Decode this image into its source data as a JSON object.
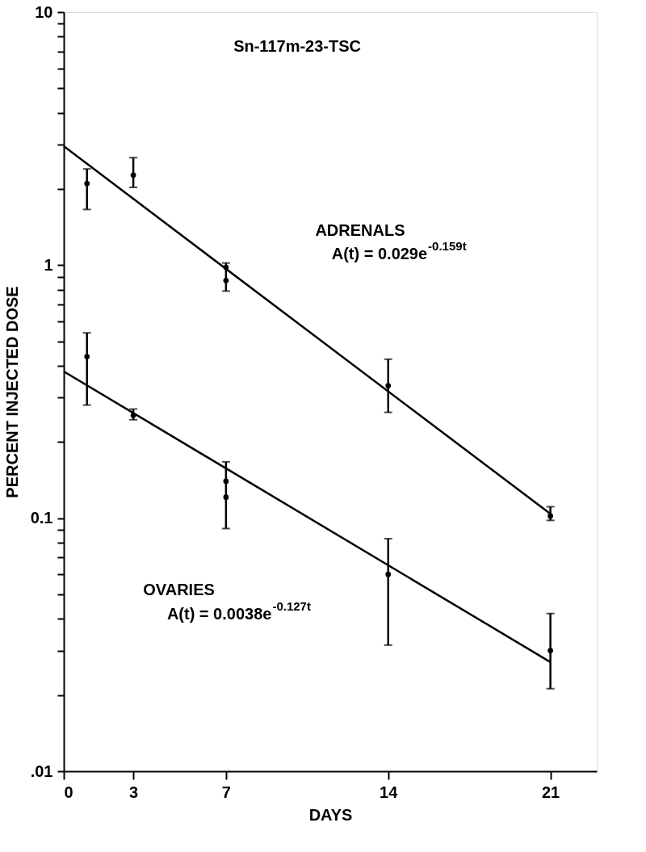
{
  "chart_data": {
    "type": "scatter",
    "title": "Sn-117m-23-TSC",
    "xlabel": "DAYS",
    "ylabel": "PERCENT INJECTED DOSE",
    "log": "y",
    "grid": false,
    "marker": "circle",
    "xlim": [
      0,
      23
    ],
    "xticks": [
      0,
      3,
      7,
      14,
      21
    ],
    "ylim": [
      0.01,
      10
    ],
    "yticks": [
      {
        "value": 0.01,
        "label": ".01"
      },
      {
        "value": 0.02,
        "label": null
      },
      {
        "value": 0.03,
        "label": null
      },
      {
        "value": 0.04,
        "label": null
      },
      {
        "value": 0.05,
        "label": null
      },
      {
        "value": 0.06,
        "label": null
      },
      {
        "value": 0.07,
        "label": null
      },
      {
        "value": 0.08,
        "label": null
      },
      {
        "value": 0.09,
        "label": null
      },
      0.1,
      {
        "value": 0.2,
        "label": null
      },
      {
        "value": 0.3,
        "label": null
      },
      {
        "value": 0.4,
        "label": null
      },
      {
        "value": 0.5,
        "label": null
      },
      {
        "value": 0.6,
        "label": null
      },
      {
        "value": 0.7,
        "label": null
      },
      {
        "value": 0.8,
        "label": null
      },
      {
        "value": 0.9,
        "label": null
      },
      1,
      {
        "value": 2,
        "label": null
      },
      {
        "value": 3,
        "label": null
      },
      {
        "value": 4,
        "label": null
      },
      {
        "value": 5,
        "label": null
      },
      {
        "value": 6,
        "label": null
      },
      {
        "value": 7,
        "label": null
      },
      {
        "value": 8,
        "label": null
      },
      {
        "value": 9,
        "label": null
      },
      10
    ],
    "series": [
      {
        "color": "#000000",
        "x": [
          1,
          3,
          7,
          7,
          14,
          21
        ],
        "values": [
          2.1,
          2.27,
          0.98,
          0.87,
          0.334,
          0.102
        ],
        "errors": [
          [
            1.66,
            2.4
          ],
          [
            2.03,
            2.66
          ],
          null,
          [
            0.79,
            1.02
          ],
          [
            0.262,
            0.425
          ],
          [
            0.098,
            0.111
          ]
        ]
      },
      {
        "color": "#000000",
        "x": [
          1,
          3,
          7,
          7,
          14,
          21
        ],
        "values": [
          0.435,
          0.255,
          0.14,
          0.121,
          0.06,
          0.03
        ],
        "errors": [
          [
            0.28,
            0.54
          ],
          [
            0.245,
            0.27
          ],
          null,
          [
            0.091,
            0.167
          ],
          [
            0.0315,
            0.083
          ],
          [
            0.0212,
            0.042
          ]
        ]
      },
      {
        "type": "line",
        "color": "#000000",
        "x": [
          0,
          21
        ],
        "values": [
          2.95,
          0.104
        ],
        "line_style": "solid",
        "marker": "none"
      },
      {
        "type": "line",
        "color": "#000000",
        "x": [
          0,
          21
        ],
        "values": [
          0.38,
          0.027
        ],
        "line_style": "solid",
        "marker": "none"
      }
    ],
    "annotations": [
      "ADRENALS",
      "A(t) = 0.029e$^{-0.159t}$",
      "OVARIES",
      "A(t) = 0.0038e$^{-0.127t}$"
    ]
  }
}
